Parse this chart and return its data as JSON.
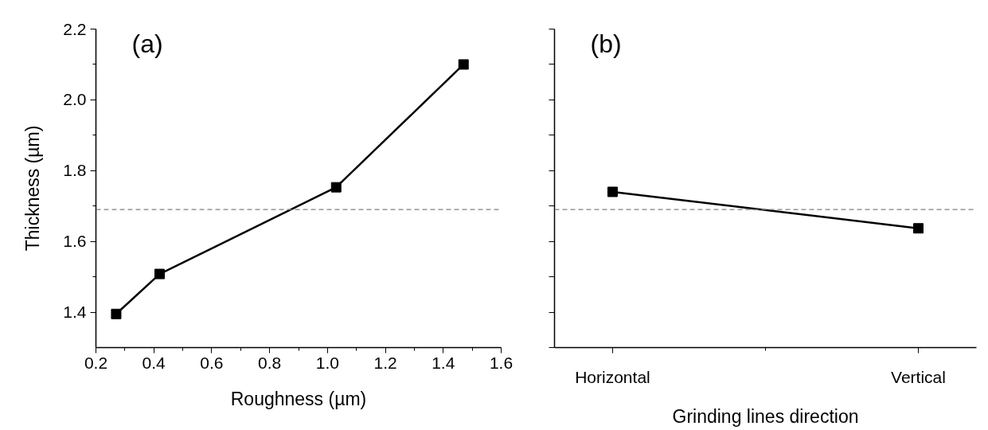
{
  "chart_data": [
    {
      "type": "line",
      "annotations": [
        "(a)"
      ],
      "xlabel": "Roughness (µm)",
      "ylabel": "Thickness (µm)",
      "x": [
        0.27,
        0.42,
        1.03,
        1.47
      ],
      "series": [
        {
          "color": "#000000",
          "values": [
            1.395,
            1.508,
            1.753,
            2.1
          ]
        }
      ],
      "xlim": [
        0.2,
        1.6
      ],
      "xticks": [
        0.2,
        0.4,
        0.6,
        0.8,
        {
          "value": 1.0,
          "label": "1.0"
        },
        1.2,
        1.4,
        1.6
      ],
      "ylim": [
        1.3,
        2.2
      ],
      "yticks": [
        1.4,
        1.6,
        1.8,
        {
          "value": 2.0,
          "label": "2.0"
        },
        2.2
      ],
      "ref_lines": [
        {
          "axis": "y",
          "value": 1.69,
          "color": "#808080",
          "line_style": "dashed"
        }
      ],
      "marker": "square",
      "line_style": "solid",
      "grid": false
    },
    {
      "type": "line",
      "annotations": [
        "(b)"
      ],
      "xlabel": "Grinding lines direction",
      "categories": [
        "Horizontal",
        "Vertical"
      ],
      "series": [
        {
          "color": "#000000",
          "values": [
            1.74,
            1.637
          ]
        }
      ],
      "ylim": [
        1.3,
        2.2
      ],
      "yticks": [
        1.3,
        1.4,
        1.5,
        1.6,
        1.7,
        1.8,
        1.9,
        2.0,
        2.1,
        2.2
      ],
      "tick_labels": "x",
      "ref_lines": [
        {
          "axis": "y",
          "value": 1.69,
          "color": "#808080",
          "line_style": "dashed"
        }
      ],
      "marker": "square",
      "line_style": "solid",
      "grid": false
    }
  ]
}
